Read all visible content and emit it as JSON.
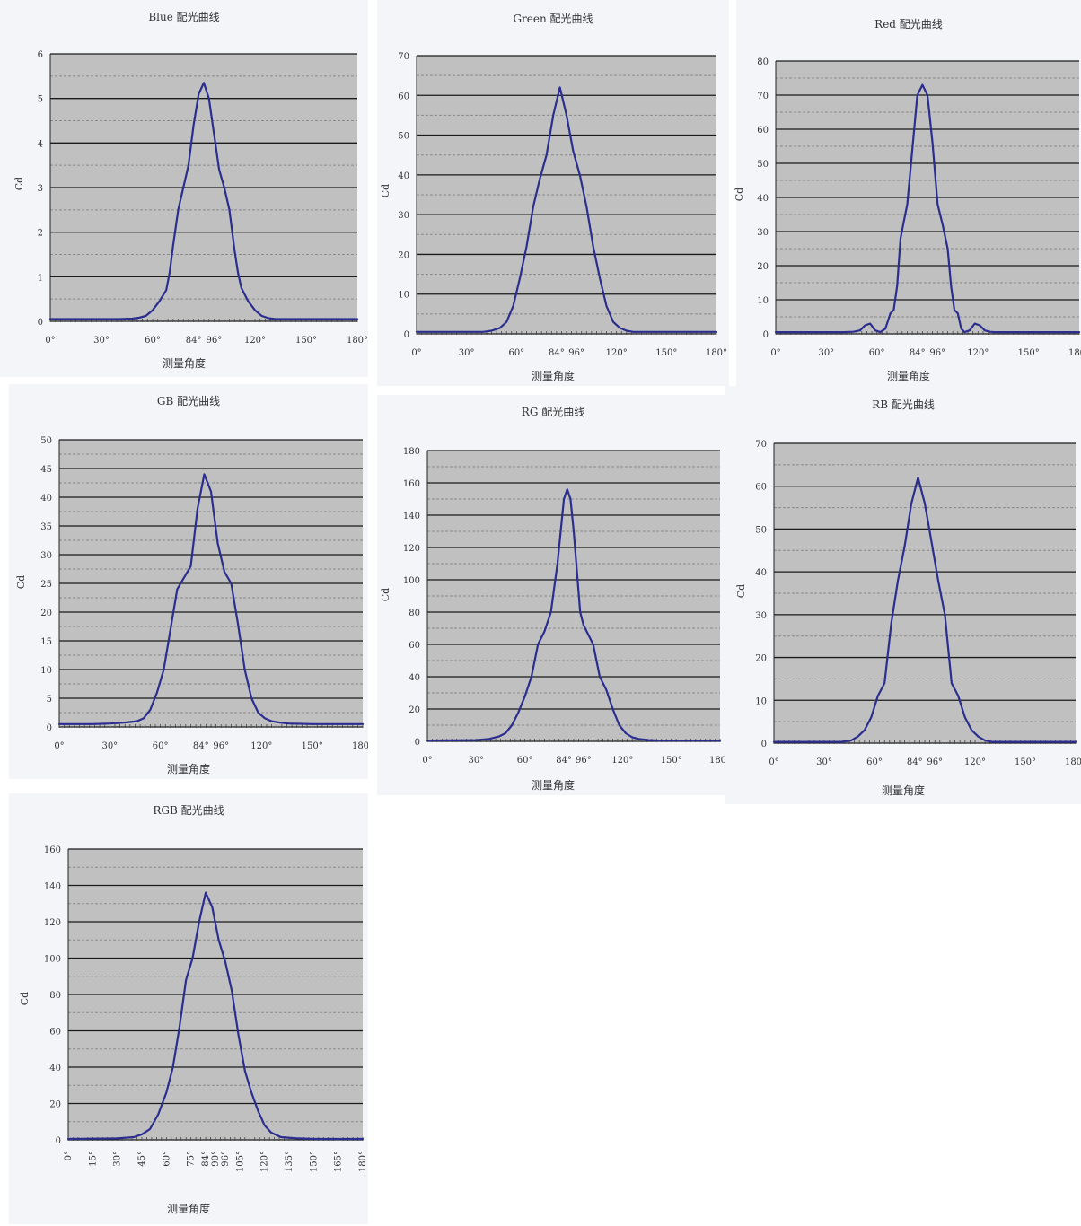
{
  "colors": {
    "plot_background": "#c0c0c0",
    "grid_major": "#1a1a1a",
    "grid_minor": "#8a8a8a",
    "series_line": "#2b2e8f",
    "panel_background": "#f3f5f9"
  },
  "chart_data": [
    {
      "type": "line",
      "title": "Blue 配光曲线",
      "ylabel": "Cd",
      "xlabel": "测量角度",
      "ylim": [
        0,
        6
      ],
      "yticks": [
        0,
        1,
        2,
        3,
        4,
        5,
        6
      ],
      "xlim": [
        0,
        180
      ],
      "xticks": [
        0,
        30,
        60,
        84,
        96,
        120,
        150,
        180
      ],
      "xtick_labels": [
        "0°",
        "30°",
        "60°",
        "84°",
        "96°",
        "120°",
        "150°",
        "180°"
      ],
      "x_dense_ticks": true,
      "series": [
        {
          "x": [
            0,
            40,
            48,
            52,
            56,
            60,
            64,
            68,
            70,
            72,
            75,
            78,
            81,
            84,
            87,
            90,
            93,
            96,
            99,
            102,
            105,
            108,
            110,
            112,
            116,
            120,
            124,
            128,
            132,
            140,
            180
          ],
          "y": [
            0.05,
            0.05,
            0.06,
            0.08,
            0.12,
            0.25,
            0.45,
            0.7,
            1.1,
            1.7,
            2.5,
            3.0,
            3.5,
            4.4,
            5.1,
            5.35,
            5.0,
            4.2,
            3.4,
            3.0,
            2.5,
            1.6,
            1.1,
            0.75,
            0.45,
            0.25,
            0.12,
            0.07,
            0.05,
            0.05,
            0.05
          ]
        }
      ]
    },
    {
      "type": "line",
      "title": "Green 配光曲线",
      "ylabel": "Cd",
      "xlabel": "测量角度",
      "ylim": [
        0,
        70
      ],
      "yticks": [
        0,
        10,
        20,
        30,
        40,
        50,
        60,
        70
      ],
      "xlim": [
        0,
        180
      ],
      "xticks": [
        0,
        30,
        60,
        84,
        96,
        120,
        150,
        180
      ],
      "xtick_labels": [
        "0°",
        "30°",
        "60°",
        "84°",
        "96°",
        "120°",
        "150°",
        "180°"
      ],
      "x_dense_ticks": true,
      "series": [
        {
          "x": [
            0,
            40,
            45,
            50,
            54,
            58,
            62,
            66,
            70,
            74,
            78,
            82,
            86,
            90,
            94,
            98,
            102,
            106,
            110,
            114,
            118,
            122,
            126,
            130,
            135,
            140,
            180
          ],
          "y": [
            0.5,
            0.5,
            0.8,
            1.5,
            3,
            7,
            14,
            22,
            32,
            39,
            45,
            55,
            62,
            55,
            46,
            40,
            32,
            22,
            14,
            7,
            3,
            1.5,
            0.8,
            0.5,
            0.5,
            0.5,
            0.5
          ]
        }
      ]
    },
    {
      "type": "line",
      "title": "Red 配光曲线",
      "ylabel": "Cd",
      "xlabel": "测量角度",
      "ylim": [
        0,
        80
      ],
      "yticks": [
        0,
        10,
        20,
        30,
        40,
        50,
        60,
        70,
        80
      ],
      "xlim": [
        0,
        180
      ],
      "xticks": [
        0,
        30,
        60,
        84,
        96,
        120,
        150,
        180
      ],
      "xtick_labels": [
        "0°",
        "30°",
        "60°",
        "84°",
        "96°",
        "120°",
        "150°",
        "180°"
      ],
      "x_dense_ticks": true,
      "series": [
        {
          "x": [
            0,
            40,
            46,
            50,
            53,
            56,
            59,
            62,
            65,
            68,
            70,
            72,
            74,
            76,
            78,
            81,
            84,
            87,
            90,
            93,
            96,
            99,
            102,
            104,
            106,
            108,
            110,
            112,
            115,
            118,
            121,
            124,
            127,
            130,
            135,
            180
          ],
          "y": [
            0.5,
            0.5,
            0.6,
            1,
            2.5,
            3,
            1,
            0.5,
            1.5,
            6,
            7,
            14,
            28,
            33,
            38,
            54,
            70,
            73,
            70,
            56,
            38,
            32,
            25,
            14,
            7,
            6,
            1.5,
            0.5,
            1,
            3,
            2.5,
            1,
            0.6,
            0.5,
            0.5,
            0.5
          ]
        }
      ]
    },
    {
      "type": "line",
      "title": "GB 配光曲线",
      "ylabel": "Cd",
      "xlabel": "测量角度",
      "ylim": [
        0,
        50
      ],
      "yticks": [
        0,
        5,
        10,
        15,
        20,
        25,
        30,
        35,
        40,
        45,
        50
      ],
      "xlim": [
        0,
        180
      ],
      "xticks": [
        0,
        30,
        60,
        84,
        96,
        120,
        150,
        180
      ],
      "xtick_labels": [
        "0°",
        "30°",
        "60°",
        "84°",
        "96°",
        "120°",
        "150°",
        "180°"
      ],
      "x_dense_ticks": true,
      "series": [
        {
          "x": [
            0,
            20,
            30,
            40,
            46,
            50,
            54,
            58,
            62,
            66,
            70,
            74,
            78,
            82,
            86,
            90,
            94,
            98,
            102,
            106,
            110,
            114,
            118,
            122,
            126,
            130,
            136,
            150,
            180
          ],
          "y": [
            0.5,
            0.5,
            0.6,
            0.8,
            1,
            1.5,
            3,
            6,
            10,
            17,
            24,
            26,
            28,
            38,
            44,
            41,
            32,
            27,
            25,
            18,
            10,
            5,
            2.5,
            1.5,
            1,
            0.8,
            0.6,
            0.5,
            0.5
          ]
        }
      ]
    },
    {
      "type": "line",
      "title": "RG 配光曲线",
      "ylabel": "Cd",
      "xlabel": "测量角度",
      "ylim": [
        0,
        180
      ],
      "yticks": [
        0,
        20,
        40,
        60,
        80,
        100,
        120,
        140,
        160,
        180
      ],
      "xlim": [
        0,
        180
      ],
      "xticks": [
        0,
        30,
        60,
        84,
        96,
        120,
        150,
        180
      ],
      "xtick_labels": [
        "0°",
        "30°",
        "60°",
        "84°",
        "96°",
        "120°",
        "150°",
        "180°"
      ],
      "x_dense_ticks": true,
      "series": [
        {
          "x": [
            0,
            30,
            38,
            44,
            48,
            52,
            56,
            60,
            64,
            68,
            72,
            76,
            80,
            84,
            86,
            88,
            90,
            92,
            94,
            96,
            98,
            102,
            106,
            110,
            114,
            118,
            122,
            126,
            130,
            136,
            142,
            180
          ],
          "y": [
            0.5,
            0.8,
            1.5,
            3,
            5,
            10,
            18,
            28,
            40,
            60,
            68,
            80,
            110,
            150,
            156,
            150,
            130,
            105,
            80,
            72,
            68,
            60,
            40,
            32,
            20,
            10,
            5,
            2.5,
            1.5,
            0.8,
            0.5,
            0.5
          ]
        }
      ]
    },
    {
      "type": "line",
      "title": "RB 配光曲线",
      "ylabel": "Cd",
      "xlabel": "测量角度",
      "ylim": [
        0,
        70
      ],
      "yticks": [
        0,
        10,
        20,
        30,
        40,
        50,
        60,
        70
      ],
      "xlim": [
        0,
        180
      ],
      "xticks": [
        0,
        30,
        60,
        84,
        96,
        120,
        150,
        180
      ],
      "xtick_labels": [
        "0°",
        "30°",
        "60°",
        "84°",
        "96°",
        "120°",
        "150°",
        "180°"
      ],
      "x_dense_ticks": true,
      "series": [
        {
          "x": [
            0,
            40,
            46,
            50,
            54,
            58,
            62,
            66,
            70,
            74,
            78,
            82,
            86,
            90,
            94,
            98,
            102,
            106,
            110,
            114,
            118,
            122,
            126,
            130,
            136,
            180
          ],
          "y": [
            0.3,
            0.3,
            0.6,
            1.5,
            3,
            6,
            11,
            14,
            28,
            38,
            46,
            56,
            62,
            56,
            47,
            38,
            30,
            14,
            11,
            6,
            3,
            1.5,
            0.6,
            0.3,
            0.3,
            0.3
          ]
        }
      ]
    },
    {
      "type": "line",
      "title": "RGB 配光曲线",
      "ylabel": "Cd",
      "xlabel": "测量角度",
      "ylim": [
        0,
        160
      ],
      "yticks": [
        0,
        20,
        40,
        60,
        80,
        100,
        120,
        140,
        160
      ],
      "xlim": [
        0,
        180
      ],
      "xticks": [
        0,
        15,
        30,
        45,
        60,
        75,
        84,
        90,
        96,
        105,
        120,
        135,
        150,
        165,
        180
      ],
      "xtick_labels": [
        "0°",
        "15°",
        "30°",
        "45°",
        "60°",
        "75°",
        "84°",
        "90°",
        "96°",
        "105°",
        "120°",
        "135°",
        "150°",
        "165°",
        "180°"
      ],
      "x_dense_ticks": true,
      "series": [
        {
          "x": [
            0,
            30,
            40,
            45,
            50,
            55,
            60,
            64,
            68,
            72,
            76,
            80,
            84,
            88,
            92,
            96,
            100,
            104,
            108,
            112,
            116,
            120,
            124,
            130,
            140,
            150,
            180
          ],
          "y": [
            0.5,
            0.8,
            1.5,
            3,
            6,
            14,
            26,
            40,
            62,
            88,
            100,
            120,
            136,
            128,
            110,
            98,
            82,
            58,
            38,
            26,
            16,
            8,
            4,
            1.5,
            0.8,
            0.5,
            0.5
          ]
        }
      ]
    }
  ]
}
